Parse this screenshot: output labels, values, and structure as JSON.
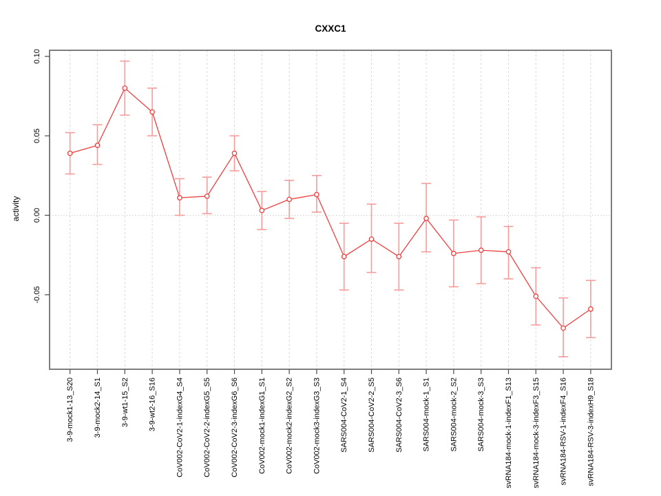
{
  "chart_data": {
    "type": "line",
    "title": "CXXC1",
    "xlabel": "",
    "ylabel": "activity",
    "ylim": [
      -0.097,
      0.104
    ],
    "yticks": [
      "0.10",
      "0.05",
      "0.00",
      "-0.05"
    ],
    "ytick_values": [
      0.1,
      0.05,
      0.0,
      -0.05
    ],
    "grid": "vertical dashed gridline at each category; dotted horizontal line at zero",
    "legend_position": "none",
    "marker": "open-circle",
    "categories": [
      "3-9-mock1-13_S20",
      "3-9-mock2-14_S1",
      "3-9-wt1-15_S2",
      "3-9-wt2-16_S16",
      "CoV002-CoV2-1-indexG4_S4",
      "CoV002-CoV2-2-indexG5_S5",
      "CoV002-CoV2-3-indexG6_S6",
      "CoV002-mock1-indexG1_S1",
      "CoV002-mock2-indexG2_S2",
      "CoV002-mock3-indexG3_S3",
      "SARS004-CoV2-1_S4",
      "SARS004-CoV2-2_S5",
      "SARS004-CoV2-3_S6",
      "SARS004-mock-1_S1",
      "SARS004-mock-2_S2",
      "SARS004-mock-3_S3",
      "svRNA184-mock-1-indexF1_S13",
      "svRNA184-mock-3-indexF3_S15",
      "svRNA184-RSV-1-indexF4_S16",
      "svRNA184-RSV-3-indexH9_S18"
    ],
    "series": [
      {
        "name": "activity",
        "values": [
          0.039,
          0.044,
          0.08,
          0.065,
          0.011,
          0.012,
          0.039,
          0.003,
          0.01,
          0.013,
          -0.026,
          -0.015,
          -0.026,
          -0.002,
          -0.024,
          -0.022,
          -0.023,
          -0.051,
          -0.071,
          -0.059
        ],
        "lower": [
          0.026,
          0.032,
          0.063,
          0.05,
          0.0,
          0.001,
          0.028,
          -0.009,
          -0.002,
          0.002,
          -0.047,
          -0.036,
          -0.047,
          -0.023,
          -0.045,
          -0.043,
          -0.04,
          -0.069,
          -0.089,
          -0.077
        ],
        "upper": [
          0.052,
          0.057,
          0.097,
          0.08,
          0.023,
          0.024,
          0.05,
          0.015,
          0.022,
          0.025,
          -0.005,
          0.007,
          -0.005,
          0.02,
          -0.003,
          -0.001,
          -0.007,
          -0.033,
          -0.052,
          -0.041
        ]
      }
    ],
    "colors": {
      "series_line": "#f23d3d",
      "marker_stroke": "#f23d3d",
      "error_bar": "#f79a9a",
      "gridline": "#d9d9d9",
      "zero_line": "#cccccc",
      "box_border": "#7d7d7d",
      "tick": "#4a4a4a",
      "text": "#000000"
    }
  }
}
